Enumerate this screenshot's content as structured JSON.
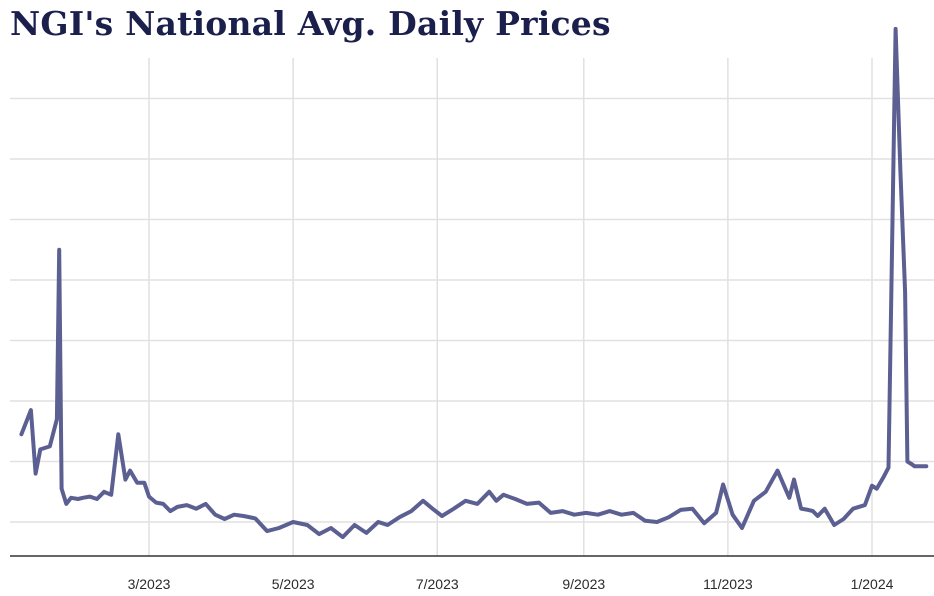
{
  "chart_data": {
    "type": "line",
    "title": "NGI's National Avg. Daily Prices",
    "xlabel": "",
    "ylabel": "",
    "x_tick_labels": [
      "3/2023",
      "5/2023",
      "7/2023",
      "9/2023",
      "11/2023",
      "1/2024"
    ],
    "ylim": [
      0,
      8.5
    ],
    "grid": true,
    "series_color": "#5c5f91",
    "series": [
      {
        "x": [
          "2023-01-06",
          "2023-01-10",
          "2023-01-12",
          "2023-01-14",
          "2023-01-18",
          "2023-01-21",
          "2023-01-22",
          "2023-01-23",
          "2023-01-25",
          "2023-01-27",
          "2023-01-30",
          "2023-02-01",
          "2023-02-04",
          "2023-02-07",
          "2023-02-10",
          "2023-02-13",
          "2023-02-16",
          "2023-02-19",
          "2023-02-21",
          "2023-02-24",
          "2023-02-27",
          "2023-03-01",
          "2023-03-04",
          "2023-03-07",
          "2023-03-10",
          "2023-03-13",
          "2023-03-17",
          "2023-03-21",
          "2023-03-25",
          "2023-03-29",
          "2023-04-02",
          "2023-04-06",
          "2023-04-10",
          "2023-04-15",
          "2023-04-20",
          "2023-04-25",
          "2023-05-01",
          "2023-05-07",
          "2023-05-12",
          "2023-05-17",
          "2023-05-22",
          "2023-05-27",
          "2023-06-01",
          "2023-06-06",
          "2023-06-10",
          "2023-06-15",
          "2023-06-20",
          "2023-06-25",
          "2023-06-29",
          "2023-07-03",
          "2023-07-08",
          "2023-07-13",
          "2023-07-18",
          "2023-07-23",
          "2023-07-26",
          "2023-07-29",
          "2023-08-03",
          "2023-08-08",
          "2023-08-13",
          "2023-08-18",
          "2023-08-23",
          "2023-08-28",
          "2023-09-02",
          "2023-09-07",
          "2023-09-12",
          "2023-09-17",
          "2023-09-22",
          "2023-09-27",
          "2023-10-02",
          "2023-10-07",
          "2023-10-12",
          "2023-10-17",
          "2023-10-22",
          "2023-10-27",
          "2023-10-30",
          "2023-11-03",
          "2023-11-07",
          "2023-11-12",
          "2023-11-17",
          "2023-11-22",
          "2023-11-27",
          "2023-11-29",
          "2023-12-02",
          "2023-12-05",
          "2023-12-07",
          "2023-12-09",
          "2023-12-12",
          "2023-12-16",
          "2023-12-20",
          "2023-12-24",
          "2023-12-29",
          "2024-01-01",
          "2024-01-03",
          "2024-01-06",
          "2024-01-08",
          "2024-01-11",
          "2024-01-13",
          "2024-01-15",
          "2024-01-16",
          "2024-01-18",
          "2024-01-19",
          "2024-01-20",
          "2024-01-22",
          "2024-01-24"
        ],
        "y": [
          1.45,
          1.85,
          0.8,
          1.2,
          1.25,
          1.7,
          4.5,
          0.55,
          0.3,
          0.4,
          0.38,
          0.4,
          0.42,
          0.38,
          0.5,
          0.45,
          1.45,
          0.7,
          0.85,
          0.65,
          0.65,
          0.42,
          0.32,
          0.3,
          0.18,
          0.25,
          0.28,
          0.22,
          0.3,
          0.12,
          0.05,
          0.12,
          0.1,
          0.06,
          -0.15,
          -0.1,
          0.0,
          -0.05,
          -0.2,
          -0.1,
          -0.25,
          -0.05,
          -0.18,
          0.0,
          -0.05,
          0.08,
          0.18,
          0.35,
          0.22,
          0.1,
          0.22,
          0.35,
          0.3,
          0.5,
          0.35,
          0.45,
          0.38,
          0.3,
          0.32,
          0.15,
          0.18,
          0.12,
          0.15,
          0.12,
          0.18,
          0.12,
          0.15,
          0.02,
          0.0,
          0.08,
          0.2,
          0.22,
          -0.02,
          0.15,
          0.62,
          0.12,
          -0.1,
          0.35,
          0.5,
          0.85,
          0.4,
          0.7,
          0.22,
          0.2,
          0.18,
          0.1,
          0.22,
          -0.05,
          0.05,
          0.22,
          0.28,
          0.6,
          0.55,
          0.75,
          0.9,
          8.15,
          5.8,
          3.8,
          1.0,
          0.95,
          0.92,
          0.92,
          0.92,
          0.92
        ]
      }
    ]
  }
}
